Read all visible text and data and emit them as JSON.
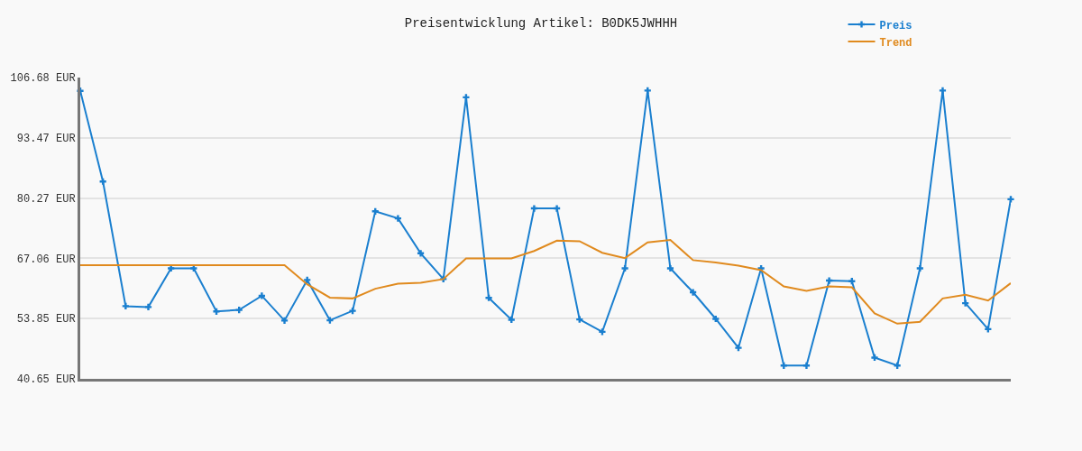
{
  "chart_data": {
    "type": "line",
    "title": "Preisentwicklung Artikel: B0DK5JWHHH",
    "categories": [
      null,
      null,
      null,
      null,
      null,
      null,
      null,
      null,
      null,
      null,
      null,
      null,
      null,
      null,
      null,
      null,
      null,
      null,
      null,
      null,
      null,
      null,
      null,
      null,
      null,
      null,
      null,
      null,
      null,
      null,
      null,
      null,
      null,
      null,
      null,
      null,
      null,
      null,
      null,
      null,
      null,
      null
    ],
    "series": [
      {
        "name": "Preis",
        "color": "#1a7fcf",
        "marker": "cross",
        "values": [
          103.77,
          83.9,
          56.58,
          56.39,
          64.87,
          64.87,
          55.42,
          55.75,
          58.85,
          53.42,
          62.32,
          53.48,
          55.55,
          77.36,
          75.81,
          68.17,
          62.52,
          102.35,
          58.39,
          53.61,
          78.0,
          78.0,
          53.67,
          50.96,
          64.87,
          103.83,
          64.87,
          59.62,
          53.8,
          47.45,
          64.87,
          43.56,
          43.56,
          62.19,
          62.06,
          45.31,
          43.56,
          64.87,
          103.83,
          57.23,
          51.54,
          80.01
        ]
      },
      {
        "name": "Trend",
        "color": "#e08a1e",
        "values": [
          65.57,
          65.57,
          65.57,
          65.57,
          65.57,
          65.57,
          65.57,
          65.57,
          65.57,
          65.57,
          61.37,
          58.46,
          58.27,
          60.4,
          61.5,
          61.7,
          62.52,
          67.06,
          67.06,
          67.06,
          68.68,
          70.95,
          70.82,
          68.29,
          67.12,
          70.56,
          71.08,
          66.67,
          66.16,
          65.45,
          64.48,
          60.91,
          59.94,
          60.91,
          60.71,
          55.02,
          52.75,
          53.14,
          58.27,
          59.1,
          57.8,
          61.63
        ]
      }
    ],
    "ylim": [
      40.65,
      106.68
    ],
    "yticks": [
      {
        "value": 40.65,
        "label": "40.65 EUR"
      },
      {
        "value": 53.85,
        "label": "53.85 EUR"
      },
      {
        "value": 67.06,
        "label": "67.06 EUR"
      },
      {
        "value": 80.27,
        "label": "80.27 EUR"
      },
      {
        "value": 93.47,
        "label": "93.47 EUR"
      },
      {
        "value": 106.68,
        "label": "106.68 EUR"
      }
    ],
    "grid": "y",
    "legend": "top right",
    "tick_labels": "y",
    "line_style": "solid"
  }
}
